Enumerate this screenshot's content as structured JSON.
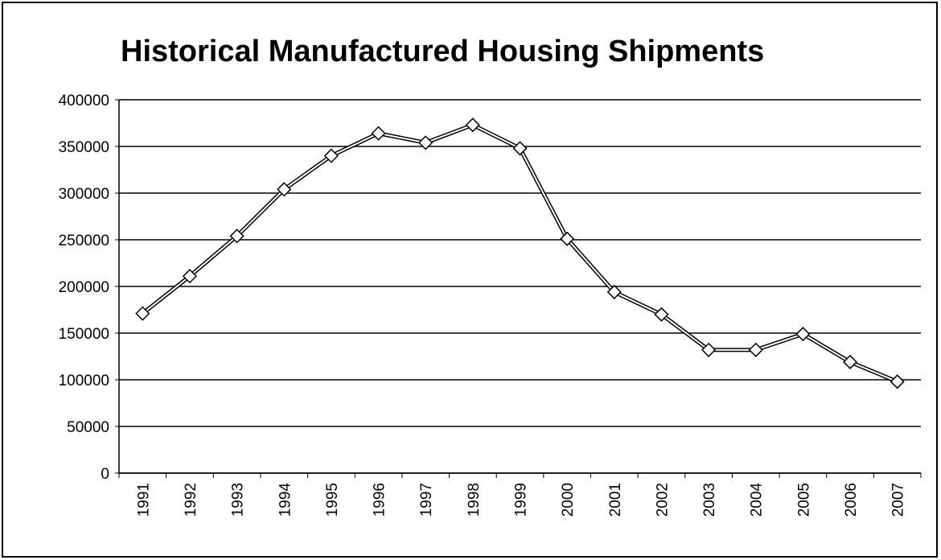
{
  "chart_data": {
    "type": "line",
    "title": "Historical Manufactured Housing Shipments",
    "categories": [
      "1991",
      "1992",
      "1993",
      "1994",
      "1995",
      "1996",
      "1997",
      "1998",
      "1999",
      "2000",
      "2001",
      "2002",
      "2003",
      "2004",
      "2005",
      "2006",
      "2007"
    ],
    "values": [
      171000,
      211000,
      254000,
      304000,
      340000,
      364000,
      354000,
      373000,
      348000,
      251000,
      194000,
      170000,
      132000,
      132000,
      149000,
      119000,
      98000
    ],
    "color": "#000000",
    "ylim": [
      0,
      400000
    ],
    "yticks": [
      0,
      50000,
      100000,
      150000,
      200000,
      250000,
      300000,
      350000,
      400000
    ],
    "grid": true
  }
}
